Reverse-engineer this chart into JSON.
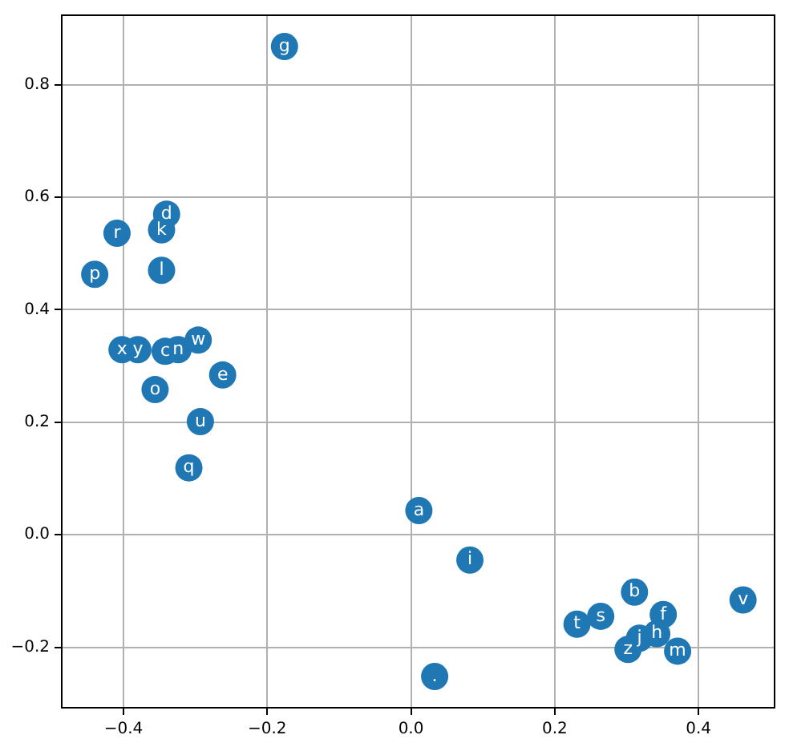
{
  "chart_data": {
    "type": "scatter",
    "marker": "circle",
    "grid": true,
    "xlim": [
      -0.487,
      0.507
    ],
    "xticks": [
      {
        "value": -0.4,
        "label": "−0.4"
      },
      {
        "value": -0.2,
        "label": "−0.2"
      },
      {
        "value": 0,
        "label": "0.0"
      },
      {
        "value": 0.2,
        "label": "0.2"
      },
      {
        "value": 0.4,
        "label": "0.4"
      }
    ],
    "ylim": [
      -0.309,
      0.925
    ],
    "yticks": [
      {
        "value": -0.2,
        "label": "−0.2"
      },
      {
        "value": 0,
        "label": "0.0"
      },
      {
        "value": 0.2,
        "label": "0.2"
      },
      {
        "value": 0.4,
        "label": "0.4"
      },
      {
        "value": 0.6,
        "label": "0.6"
      },
      {
        "value": 0.8,
        "label": "0.8"
      }
    ],
    "series": [
      {
        "color": "#1f77b4",
        "x": [
          -0.176,
          -0.34,
          -0.347,
          -0.409,
          -0.44,
          -0.347,
          -0.402,
          -0.38,
          -0.342,
          -0.324,
          -0.296,
          -0.262,
          -0.356,
          -0.293,
          -0.309,
          0.011,
          0.082,
          0.033,
          0.231,
          0.264,
          0.311,
          0.351,
          0.342,
          0.318,
          0.302,
          0.371,
          0.462
        ],
        "values": [
          0.868,
          0.57,
          0.542,
          0.536,
          0.463,
          0.47,
          0.329,
          0.329,
          0.326,
          0.329,
          0.346,
          0.284,
          0.258,
          0.201,
          0.119,
          0.043,
          -0.045,
          -0.252,
          -0.159,
          -0.145,
          -0.102,
          -0.142,
          -0.176,
          -0.184,
          -0.204,
          -0.207,
          -0.116
        ]
      }
    ],
    "annotations": [
      {
        "text": "g",
        "x": -0.176,
        "y": 0.868
      },
      {
        "text": "d",
        "x": -0.34,
        "y": 0.57
      },
      {
        "text": "k",
        "x": -0.347,
        "y": 0.542
      },
      {
        "text": "r",
        "x": -0.409,
        "y": 0.536
      },
      {
        "text": "p",
        "x": -0.44,
        "y": 0.463
      },
      {
        "text": "l",
        "x": -0.347,
        "y": 0.47
      },
      {
        "text": "x",
        "x": -0.402,
        "y": 0.329
      },
      {
        "text": "y",
        "x": -0.38,
        "y": 0.329
      },
      {
        "text": "c",
        "x": -0.342,
        "y": 0.326
      },
      {
        "text": "n",
        "x": -0.324,
        "y": 0.329
      },
      {
        "text": "w",
        "x": -0.296,
        "y": 0.346
      },
      {
        "text": "e",
        "x": -0.262,
        "y": 0.284
      },
      {
        "text": "o",
        "x": -0.356,
        "y": 0.258
      },
      {
        "text": "u",
        "x": -0.293,
        "y": 0.201
      },
      {
        "text": "q",
        "x": -0.309,
        "y": 0.119
      },
      {
        "text": "a",
        "x": 0.011,
        "y": 0.043
      },
      {
        "text": "i",
        "x": 0.082,
        "y": -0.045
      },
      {
        "text": ".",
        "x": 0.033,
        "y": -0.252
      },
      {
        "text": "t",
        "x": 0.231,
        "y": -0.159
      },
      {
        "text": "s",
        "x": 0.264,
        "y": -0.145
      },
      {
        "text": "b",
        "x": 0.311,
        "y": -0.102
      },
      {
        "text": "f",
        "x": 0.351,
        "y": -0.142
      },
      {
        "text": "h",
        "x": 0.342,
        "y": -0.176
      },
      {
        "text": "j",
        "x": 0.318,
        "y": -0.184
      },
      {
        "text": "z",
        "x": 0.302,
        "y": -0.204
      },
      {
        "text": "m",
        "x": 0.371,
        "y": -0.207
      },
      {
        "text": "v",
        "x": 0.462,
        "y": -0.116
      }
    ]
  }
}
